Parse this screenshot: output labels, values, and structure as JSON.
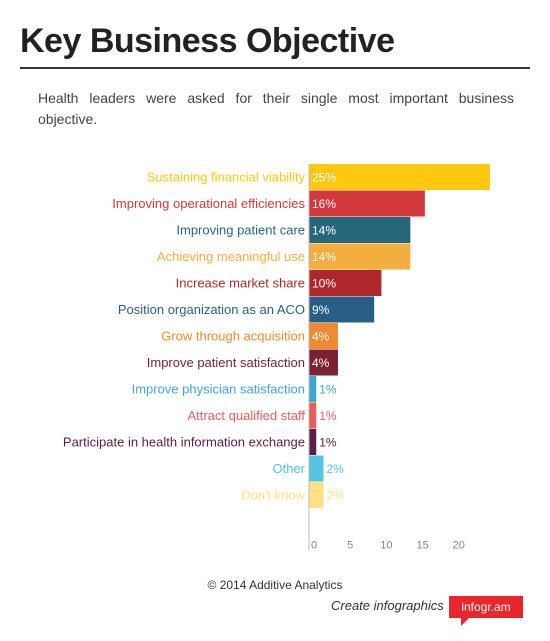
{
  "header": {
    "title": "Key Business Objective",
    "subtitle": "Health leaders were asked for their single most important business objective."
  },
  "chart_data": {
    "type": "bar",
    "orientation": "horizontal",
    "categories": [
      "Sustaining financial viability",
      "Improving operational efficiencies",
      "Improving patient care",
      "Achieving meaningful use",
      "Increase market share",
      "Position organization as an ACO",
      "Grow through acquisition",
      "Improve patient satisfaction",
      "Improve physician satisfaction",
      "Attract qualified staff",
      "Participate in health information exchange",
      "Other",
      "Don't know"
    ],
    "values": [
      25,
      16,
      14,
      14,
      10,
      9,
      4,
      4,
      1,
      1,
      1,
      2,
      2
    ],
    "data_labels": [
      "25%",
      "16%",
      "14%",
      "14%",
      "10%",
      "9%",
      "4%",
      "4%",
      "1%",
      "1%",
      "1%",
      "2%",
      "2%"
    ],
    "colors": [
      "#fdc80f",
      "#d3393c",
      "#26687a",
      "#f4ae3d",
      "#b0282c",
      "#295f87",
      "#ee8a2f",
      "#7a2232",
      "#3ea7d1",
      "#ea5c5b",
      "#5a2049",
      "#53c5e3",
      "#fde183"
    ],
    "xticks": [
      0,
      5,
      10,
      15,
      20
    ],
    "xlim": [
      0,
      25
    ],
    "grid": false,
    "title": "",
    "xlabel": "",
    "ylabel": ""
  },
  "footer": {
    "copyright": "© 2014 Additive Analytics",
    "promo": "Create infographics",
    "brand": "infogr.am"
  }
}
